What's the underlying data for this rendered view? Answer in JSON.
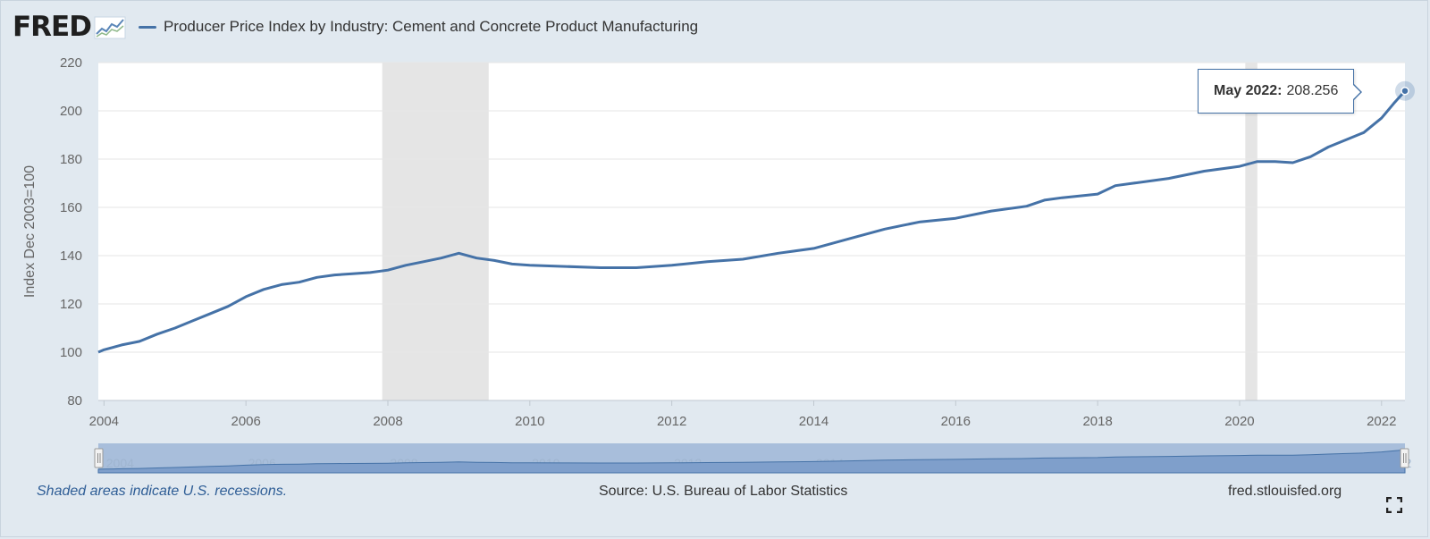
{
  "header": {
    "logo_text": "FRED",
    "series_title": "Producer Price Index by Industry: Cement and Concrete Product Manufacturing"
  },
  "tooltip": {
    "date": "May 2022:",
    "value": "208.256"
  },
  "footer": {
    "recession_note": "Shaded areas indicate U.S. recessions.",
    "source": "Source: U.S. Bureau of Labor Statistics",
    "url": "fred.stlouisfed.org"
  },
  "colors": {
    "series_line": "#4572a7",
    "recession_shade": "#e5e5e5",
    "background": "#e1e9f0",
    "navigator_fill": "#a8bedb"
  },
  "chart_data": {
    "type": "line",
    "title": "Producer Price Index by Industry: Cement and Concrete Product Manufacturing",
    "xlabel": "",
    "ylabel": "Index Dec 2003=100",
    "xlim": [
      2003.92,
      2022.33
    ],
    "ylim": [
      80,
      220
    ],
    "y_ticks": [
      80,
      100,
      120,
      140,
      160,
      180,
      200,
      220
    ],
    "y_tick_labels": [
      "80",
      "100",
      "120",
      "140",
      "160",
      "180",
      "200",
      "220"
    ],
    "x_ticks": [
      2004,
      2006,
      2008,
      2010,
      2012,
      2014,
      2016,
      2018,
      2020,
      2022
    ],
    "x_tick_labels": [
      "2004",
      "2006",
      "2008",
      "2010",
      "2012",
      "2014",
      "2016",
      "2018",
      "2020",
      "2022"
    ],
    "grid": true,
    "recessions": [
      [
        2007.92,
        2009.42
      ],
      [
        2020.08,
        2020.25
      ]
    ],
    "series": [
      {
        "name": "Producer Price Index by Industry: Cement and Concrete Product Manufacturing",
        "x": [
          2003.92,
          2004.0,
          2004.25,
          2004.5,
          2004.75,
          2005.0,
          2005.25,
          2005.5,
          2005.75,
          2006.0,
          2006.25,
          2006.5,
          2006.75,
          2007.0,
          2007.25,
          2007.5,
          2007.75,
          2008.0,
          2008.25,
          2008.5,
          2008.75,
          2009.0,
          2009.25,
          2009.5,
          2009.75,
          2010.0,
          2010.5,
          2011.0,
          2011.5,
          2012.0,
          2012.5,
          2013.0,
          2013.5,
          2014.0,
          2014.5,
          2015.0,
          2015.25,
          2015.5,
          2016.0,
          2016.5,
          2017.0,
          2017.25,
          2017.5,
          2018.0,
          2018.25,
          2018.5,
          2019.0,
          2019.5,
          2020.0,
          2020.25,
          2020.5,
          2020.75,
          2021.0,
          2021.25,
          2021.5,
          2021.75,
          2022.0,
          2022.17,
          2022.33
        ],
        "values": [
          100.0,
          101.0,
          103.0,
          104.5,
          107.5,
          110.0,
          113.0,
          116.0,
          119.0,
          123.0,
          126.0,
          128.0,
          129.0,
          131.0,
          132.0,
          132.5,
          133.0,
          134.0,
          136.0,
          137.5,
          139.0,
          141.0,
          139.0,
          138.0,
          136.5,
          136.0,
          135.5,
          135.0,
          135.0,
          136.0,
          137.5,
          138.5,
          141.0,
          143.0,
          147.0,
          151.0,
          152.5,
          154.0,
          155.5,
          158.5,
          160.5,
          163.0,
          164.0,
          165.5,
          169.0,
          170.0,
          172.0,
          175.0,
          177.0,
          179.0,
          179.0,
          178.5,
          181.0,
          185.0,
          188.0,
          191.0,
          197.0,
          203.0,
          208.256
        ]
      }
    ]
  }
}
